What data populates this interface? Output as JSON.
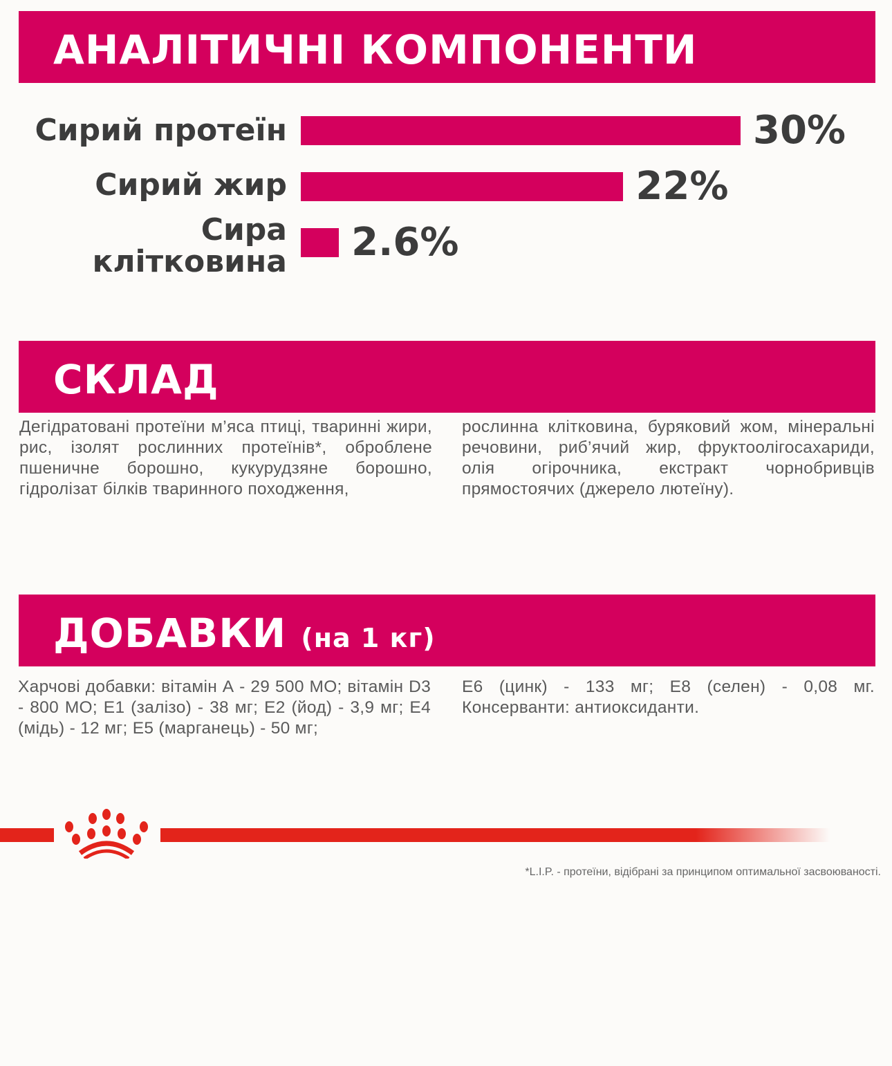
{
  "analytical": {
    "title": "АНАЛІТИЧНІ КОМПОНЕНТИ",
    "items": [
      {
        "label": "Сирий протеїн",
        "value": 30,
        "value_label": "30%"
      },
      {
        "label": "Сирий жир",
        "value": 22,
        "value_label": "22%"
      },
      {
        "label": "Сира клітковина",
        "value": 2.6,
        "value_label": "2.6%"
      }
    ],
    "bar_color": "#d4005d"
  },
  "composition": {
    "title": "СКЛАД",
    "col1": "Дегідратовані протеїни м’яса птиці, тваринні жири, рис, ізолят рослинних протеїнів*, обро­блене пшеничне борошно, кукурудзяне борош­но, гідролізат білків тваринного походження,",
    "col2": "рослинна клітковина, буряковий жом, міне­ральні речовини, риб’ячий жир, фруктоолігоса­хариди, олія огірочника, екстракт чорнобривців прямостоячих (джерело лютеїну)."
  },
  "additives": {
    "title": "ДОБАВКИ",
    "subtitle": "(на 1 кг)",
    "col1": "Харчові добавки: вітамін А - 29 500 МО; вітамін D3 - 800 МО; Е1 (залізо) - 38 мг; Е2 (йод) - 3,9 мг; Е4 (мідь) - 12 мг; Е5 (марганець) - 50 мг;",
    "col2": "Е6 (цинк) - 133 мг; Е8 (селен) - 0,08 мг. Консерванти: антиоксиданти."
  },
  "footnote": "*L.I.P. - протеїни, відібрані за принципом оптимальної засвоюваності.",
  "brand_color": "#e3241b"
}
